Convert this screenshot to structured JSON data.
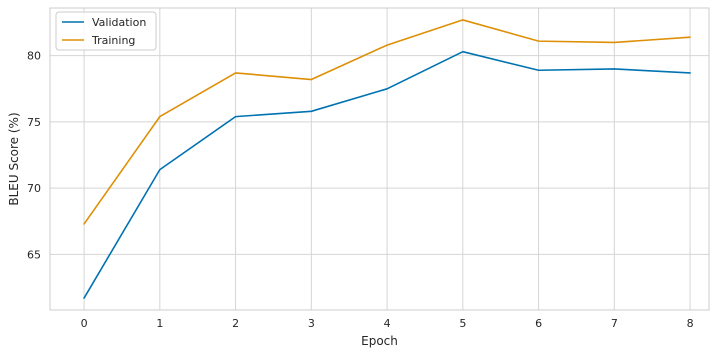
{
  "chart_data": {
    "type": "line",
    "title": "",
    "xlabel": "Epoch",
    "ylabel": "BLEU Score (%)",
    "x": [
      0,
      1,
      2,
      3,
      4,
      5,
      6,
      7,
      8
    ],
    "xlim": [
      -0.45,
      8.25
    ],
    "ylim": [
      60.8,
      83.6
    ],
    "xticks": [
      0,
      1,
      2,
      3,
      4,
      5,
      6,
      7,
      8
    ],
    "yticks": [
      65,
      70,
      75,
      80
    ],
    "grid": true,
    "legend_position": "top-left",
    "series": [
      {
        "name": "Validation",
        "color": "#0072b2",
        "values": [
          61.7,
          71.4,
          75.4,
          75.8,
          77.5,
          80.3,
          78.9,
          79.0,
          78.7
        ]
      },
      {
        "name": "Training",
        "color": "#de8f05",
        "values": [
          67.3,
          75.4,
          78.7,
          78.2,
          80.8,
          82.7,
          81.1,
          81.0,
          81.4
        ]
      }
    ]
  }
}
